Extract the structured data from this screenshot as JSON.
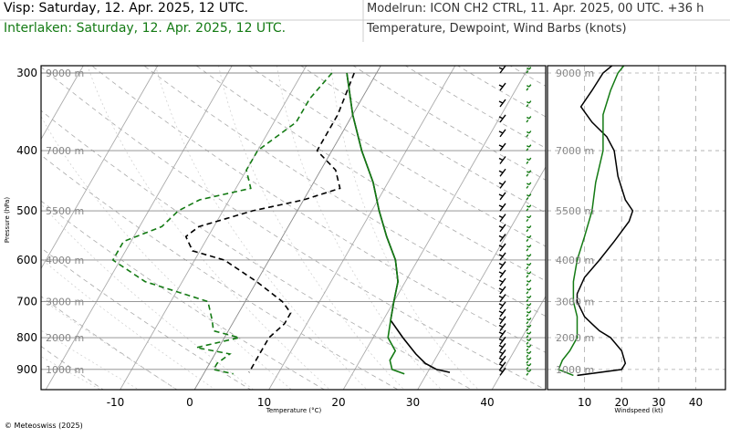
{
  "header": {
    "visp_title": "Visp: Saturday, 12. Apr. 2025, 12 UTC.",
    "interlaken_title": "Interlaken: Saturday, 12. Apr. 2025, 12 UTC.",
    "model_run": "Modelrun: ICON CH2 CTRL, 11. Apr. 2025, 00 UTC. +36 h",
    "variables": "Temperature, Dewpoint, Wind Barbs (knots)"
  },
  "footer": {
    "copyright": "© Meteoswiss (2025)"
  },
  "colors": {
    "visp": "#000000",
    "interlaken": "#137a13"
  },
  "chart_data": [
    {
      "type": "line",
      "chart": "skew-t",
      "xlabel": "Temperature (°C)",
      "ylabel": "Pressure (hPa)",
      "x_ticks": [
        "-10",
        "0",
        "10",
        "20",
        "30",
        "40"
      ],
      "x_tick_values": [
        -10,
        0,
        10,
        20,
        30,
        40
      ],
      "y_ticks": [
        "300",
        "400",
        "500",
        "600",
        "700",
        "800",
        "900"
      ],
      "y_tick_values": [
        300,
        400,
        500,
        600,
        700,
        800,
        900
      ],
      "altitude_labels": [
        "9000 m",
        "7000 m",
        "5500 m",
        "4000 m",
        "3000 m",
        "2000 m",
        "1000 m"
      ],
      "altitude_pressures": [
        300,
        400,
        500,
        600,
        700,
        800,
        900
      ],
      "x_range": [
        -25,
        47
      ],
      "p_range": [
        290,
        970
      ],
      "grid": true,
      "series": [
        {
          "station": "Visp",
          "variable": "temperature",
          "style": "solid",
          "p": [
            300,
            350,
            400,
            450,
            500,
            550,
            600,
            650,
            700,
            750,
            800,
            850,
            880,
            900,
            910
          ],
          "x": [
            -4,
            0,
            4,
            8,
            11,
            14,
            17,
            19,
            20,
            21,
            24,
            27,
            29,
            31,
            33
          ]
        },
        {
          "station": "Visp",
          "variable": "dewpoint",
          "style": "dashed",
          "p": [
            300,
            350,
            400,
            430,
            460,
            480,
            500,
            530,
            550,
            580,
            600,
            650,
            700,
            730,
            760,
            800,
            850,
            880,
            900,
            910
          ],
          "x": [
            -3,
            -2,
            -2,
            2,
            4,
            0,
            -6,
            -12,
            -13,
            -11,
            -6,
            0,
            5,
            7,
            7,
            6,
            6,
            6,
            6,
            6
          ]
        },
        {
          "station": "Interlaken",
          "variable": "temperature",
          "style": "solid",
          "p": [
            300,
            350,
            400,
            450,
            500,
            550,
            600,
            650,
            700,
            750,
            800,
            840,
            870,
            900,
            915
          ],
          "x": [
            -4,
            0,
            4,
            8,
            11,
            14,
            17,
            19,
            20,
            21,
            22,
            24,
            24,
            25,
            27
          ]
        },
        {
          "station": "Interlaken",
          "variable": "dewpoint",
          "style": "dashed",
          "p": [
            300,
            330,
            360,
            400,
            430,
            460,
            480,
            500,
            530,
            560,
            600,
            650,
            700,
            750,
            780,
            800,
            830,
            850,
            880,
            900,
            915
          ],
          "x": [
            -6,
            -7,
            -7,
            -10,
            -10,
            -8,
            -14,
            -16,
            -17,
            -21,
            -21,
            -15,
            -5,
            -3,
            -2,
            2,
            -3,
            2,
            1,
            1,
            4
          ]
        }
      ]
    },
    {
      "type": "line",
      "chart": "wind-speed-profile",
      "xlabel": "Windspeed (kt)",
      "x_ticks": [
        "10",
        "20",
        "30",
        "40"
      ],
      "x_tick_values": [
        10,
        20,
        30,
        40
      ],
      "x_range": [
        0,
        48
      ],
      "altitude_labels": [
        "9000 m",
        "7000 m",
        "5500 m",
        "4000 m",
        "3000 m",
        "2000 m",
        "1000 m"
      ],
      "altitude_pressures": [
        300,
        400,
        500,
        600,
        700,
        800,
        900
      ],
      "grid": true,
      "series": [
        {
          "station": "Visp",
          "variable": "windspeed",
          "p": [
            290,
            300,
            320,
            340,
            360,
            380,
            400,
            440,
            480,
            500,
            520,
            560,
            600,
            640,
            680,
            700,
            720,
            740,
            760,
            780,
            800,
            840,
            880,
            900,
            920
          ],
          "x": [
            18,
            15,
            12,
            9,
            12,
            16,
            18,
            19,
            21,
            23,
            22,
            18,
            14,
            10,
            8,
            8,
            9,
            10,
            12,
            14,
            17,
            20,
            21,
            20,
            8
          ]
        },
        {
          "station": "Interlaken",
          "variable": "windspeed",
          "p": [
            290,
            300,
            320,
            350,
            400,
            450,
            500,
            550,
            600,
            650,
            700,
            740,
            780,
            800,
            840,
            870,
            900,
            920
          ],
          "x": [
            21,
            19,
            17,
            15,
            15,
            13,
            12,
            10,
            8,
            7,
            7,
            8,
            8,
            8,
            6,
            4,
            3,
            7
          ]
        }
      ]
    }
  ]
}
